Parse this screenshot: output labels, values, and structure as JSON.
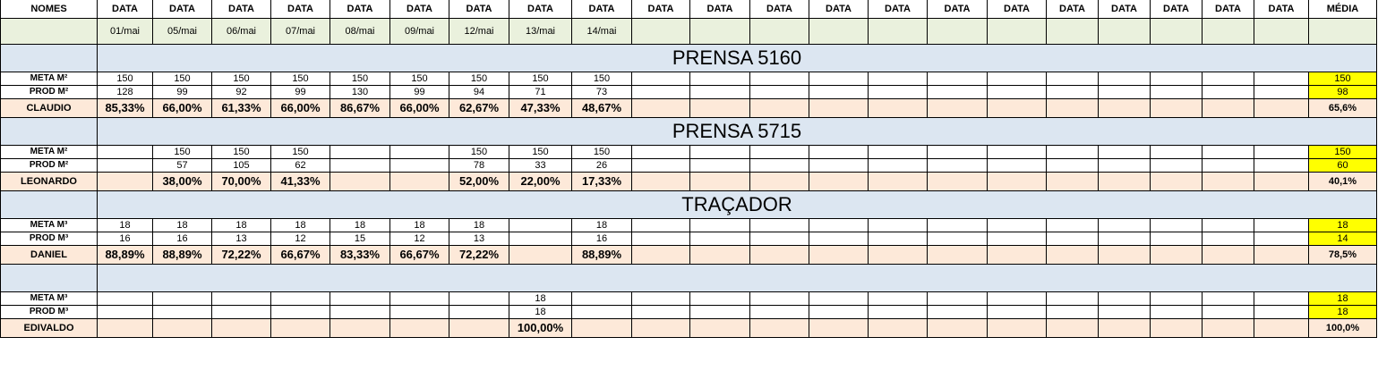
{
  "header": {
    "nomes": "NOMES",
    "cols": [
      "DATA",
      "DATA",
      "DATA",
      "DATA",
      "DATA",
      "DATA",
      "DATA",
      "DATA",
      "DATA",
      "DATA",
      "DATA",
      "DATA",
      "DATA",
      "DATA",
      "DATA",
      "DATA",
      "DATA",
      "DATA",
      "DATA",
      "DATA",
      "DATA"
    ],
    "media": "MÉDIA"
  },
  "dates": [
    "01/mai",
    "05/mai",
    "06/mai",
    "07/mai",
    "08/mai",
    "09/mai",
    "12/mai",
    "13/mai",
    "14/mai",
    "",
    "",
    "",
    "",
    "",
    "",
    "",
    "",
    "",
    "",
    "",
    ""
  ],
  "sections": [
    {
      "title": "PRENSA 5160",
      "rows": [
        {
          "label": "META M²",
          "values": [
            "150",
            "150",
            "150",
            "150",
            "150",
            "150",
            "150",
            "150",
            "150",
            "",
            "",
            "",
            "",
            "",
            "",
            "",
            "",
            "",
            "",
            "",
            ""
          ],
          "avg": "150"
        },
        {
          "label": "PROD M²",
          "values": [
            "128",
            "99",
            "92",
            "99",
            "130",
            "99",
            "94",
            "71",
            "73",
            "",
            "",
            "",
            "",
            "",
            "",
            "",
            "",
            "",
            "",
            "",
            ""
          ],
          "avg": "98"
        },
        {
          "label": "CLAUDIO",
          "values": [
            "85,33%",
            "66,00%",
            "61,33%",
            "66,00%",
            "86,67%",
            "66,00%",
            "62,67%",
            "47,33%",
            "48,67%",
            "",
            "",
            "",
            "",
            "",
            "",
            "",
            "",
            "",
            "",
            "",
            ""
          ],
          "avg": "65,6%"
        }
      ]
    },
    {
      "title": "PRENSA 5715",
      "rows": [
        {
          "label": "META M²",
          "values": [
            "",
            "150",
            "150",
            "150",
            "",
            "",
            "150",
            "150",
            "150",
            "",
            "",
            "",
            "",
            "",
            "",
            "",
            "",
            "",
            "",
            "",
            ""
          ],
          "avg": "150"
        },
        {
          "label": "PROD M²",
          "values": [
            "",
            "57",
            "105",
            "62",
            "",
            "",
            "78",
            "33",
            "26",
            "",
            "",
            "",
            "",
            "",
            "",
            "",
            "",
            "",
            "",
            "",
            ""
          ],
          "avg": "60"
        },
        {
          "label": "LEONARDO",
          "values": [
            "",
            "38,00%",
            "70,00%",
            "41,33%",
            "",
            "",
            "52,00%",
            "22,00%",
            "17,33%",
            "",
            "",
            "",
            "",
            "",
            "",
            "",
            "",
            "",
            "",
            "",
            ""
          ],
          "avg": "40,1%"
        }
      ]
    },
    {
      "title": "TRAÇADOR",
      "rows": [
        {
          "label": "META M³",
          "values": [
            "18",
            "18",
            "18",
            "18",
            "18",
            "18",
            "18",
            "",
            "18",
            "",
            "",
            "",
            "",
            "",
            "",
            "",
            "",
            "",
            "",
            "",
            ""
          ],
          "avg": "18"
        },
        {
          "label": "PROD M³",
          "values": [
            "16",
            "16",
            "13",
            "12",
            "15",
            "12",
            "13",
            "",
            "16",
            "",
            "",
            "",
            "",
            "",
            "",
            "",
            "",
            "",
            "",
            "",
            ""
          ],
          "avg": "14"
        },
        {
          "label": "DANIEL",
          "values": [
            "88,89%",
            "88,89%",
            "72,22%",
            "66,67%",
            "83,33%",
            "66,67%",
            "72,22%",
            "",
            "88,89%",
            "",
            "",
            "",
            "",
            "",
            "",
            "",
            "",
            "",
            "",
            "",
            ""
          ],
          "avg": "78,5%"
        }
      ]
    },
    {
      "title": "",
      "rows": [
        {
          "label": "META M³",
          "values": [
            "",
            "",
            "",
            "",
            "",
            "",
            "",
            "18",
            "",
            "",
            "",
            "",
            "",
            "",
            "",
            "",
            "",
            "",
            "",
            "",
            ""
          ],
          "avg": "18"
        },
        {
          "label": "PROD M³",
          "values": [
            "",
            "",
            "",
            "",
            "",
            "",
            "",
            "18",
            "",
            "",
            "",
            "",
            "",
            "",
            "",
            "",
            "",
            "",
            "",
            "",
            ""
          ],
          "avg": "18"
        },
        {
          "label": "EDIVALDO",
          "values": [
            "",
            "",
            "",
            "",
            "",
            "",
            "",
            "100,00%",
            "",
            "",
            "",
            "",
            "",
            "",
            "",
            "",
            "",
            "",
            "",
            "",
            ""
          ],
          "avg": "100,0%"
        }
      ]
    }
  ]
}
